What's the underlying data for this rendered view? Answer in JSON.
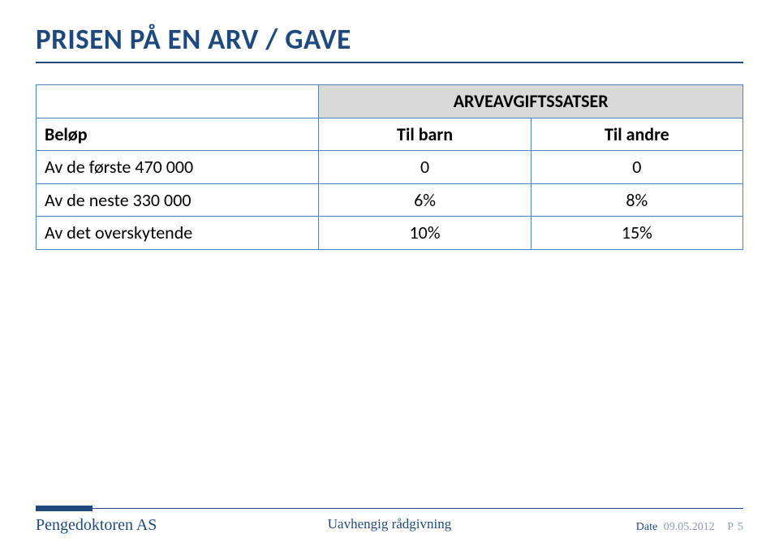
{
  "title": "PRISEN PÅ EN ARV / GAVE",
  "colors": {
    "accent": "#1f497d",
    "header_bg": "#d9d9d9",
    "cell_border": "#4f81bd",
    "text": "#000000",
    "background": "#ffffff",
    "footer_muted": "#8b9ab8"
  },
  "typography": {
    "title_fontsize_pt": 26,
    "title_weight": "700",
    "table_fontsize_pt": 16,
    "footer_left_fontsize_pt": 15,
    "footer_center_fontsize_pt": 13,
    "footer_right_fontsize_pt": 11
  },
  "table": {
    "type": "table",
    "span_header": "ARVEAVGIFTSSATSER",
    "columns": [
      "Beløp",
      "Til barn",
      "Til andre"
    ],
    "column_align": [
      "left",
      "center",
      "center"
    ],
    "column_widths_pct": [
      40,
      30,
      30
    ],
    "rows": [
      [
        "Av de første 470 000",
        "0",
        "0"
      ],
      [
        "Av de neste 330 000",
        "6%",
        "8%"
      ],
      [
        "Av det overskytende",
        "10%",
        "15%"
      ]
    ],
    "border_color": "#4f81bd",
    "header_bg": "#d9d9d9"
  },
  "footer": {
    "left": "Pengedoktoren AS",
    "center": "Uavhengig rådgivning",
    "date_label": "Date",
    "date_value": "09.05.2012",
    "page_label": "P",
    "page_value": "5"
  }
}
